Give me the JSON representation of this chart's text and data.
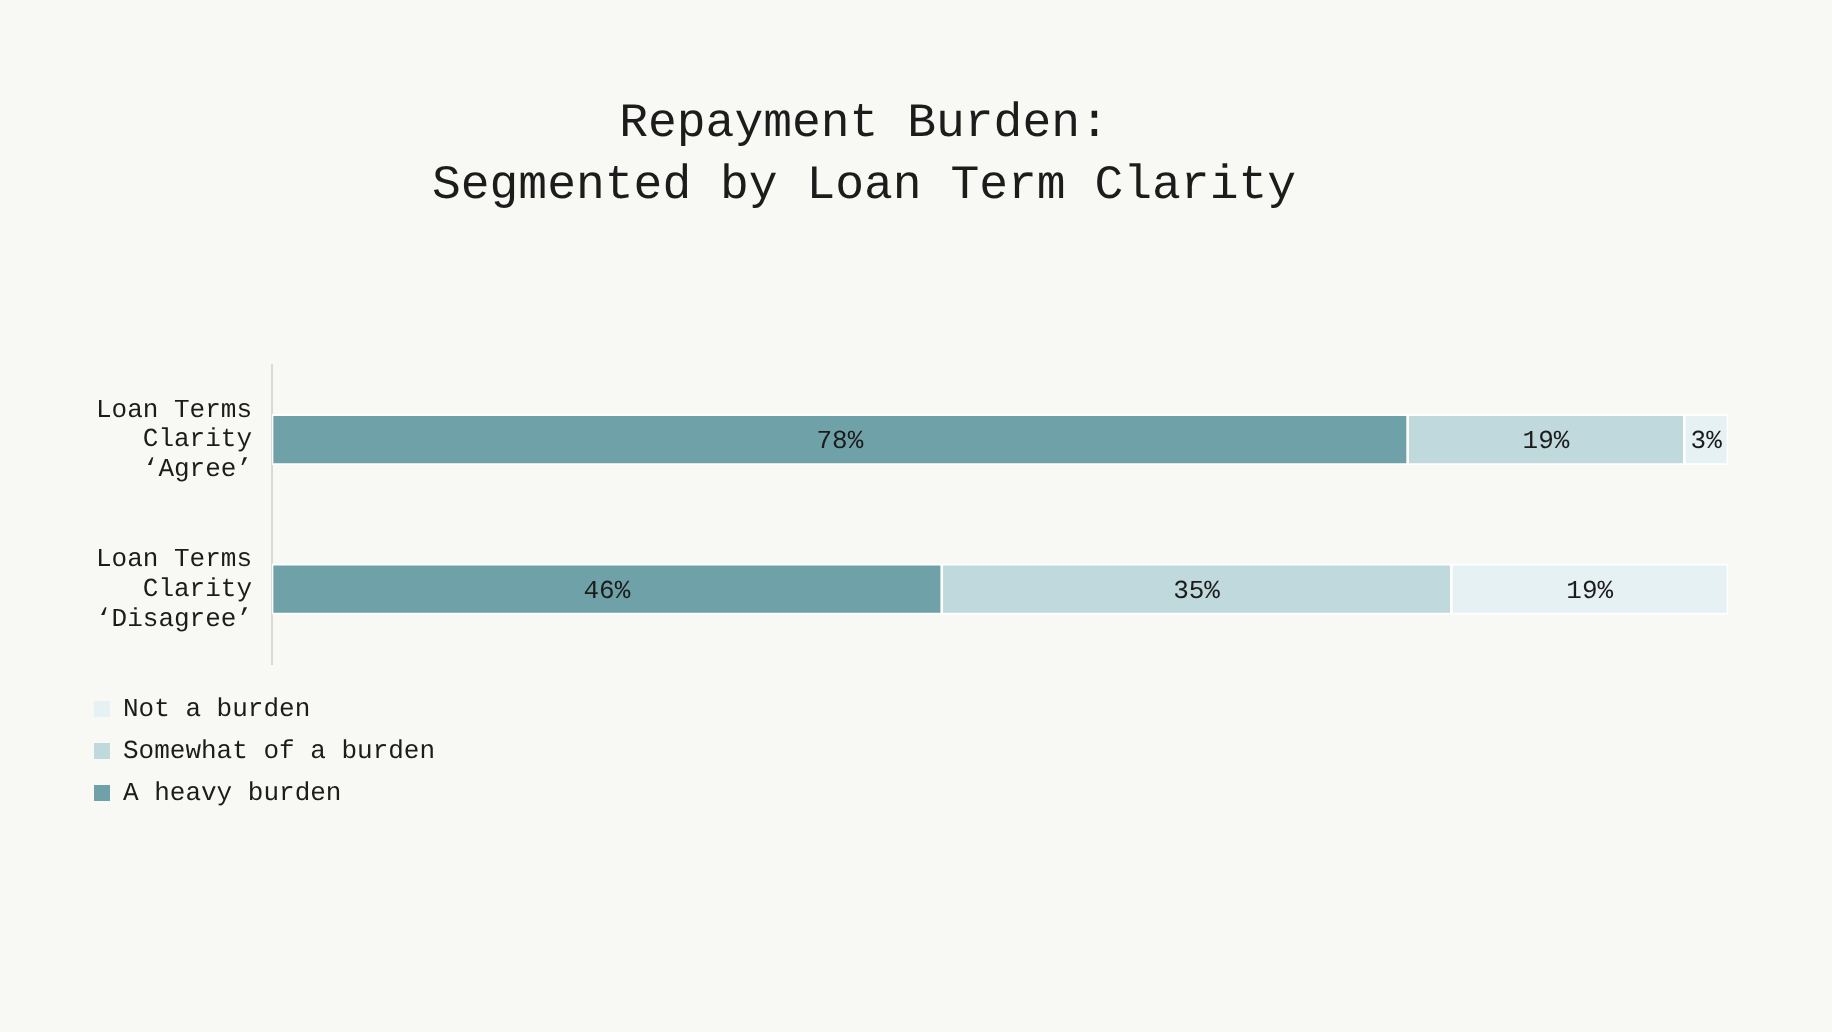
{
  "chart_data": {
    "type": "bar",
    "orientation": "horizontal",
    "stacked": true,
    "title": "Repayment Burden:\nSegmented by Loan Term Clarity",
    "categories": [
      "Loan Terms Clarity ‘Agree’",
      "Loan Terms Clarity ‘Disagree’"
    ],
    "series": [
      {
        "name": "A heavy burden",
        "color": "#6fa2a8",
        "values": [
          78,
          46
        ],
        "value_labels": [
          "78%",
          "46%"
        ]
      },
      {
        "name": "Somewhat of a burden",
        "color": "#bfd9dc",
        "values": [
          19,
          35
        ],
        "value_labels": [
          "19%",
          "35%"
        ]
      },
      {
        "name": "Not a burden",
        "color": "#e6f1f4",
        "values": [
          3,
          19
        ],
        "value_labels": [
          "3%",
          "19%"
        ]
      }
    ],
    "xlim": [
      0,
      100
    ],
    "legend": "bottom left",
    "tick_labels": "y",
    "grid": false
  }
}
